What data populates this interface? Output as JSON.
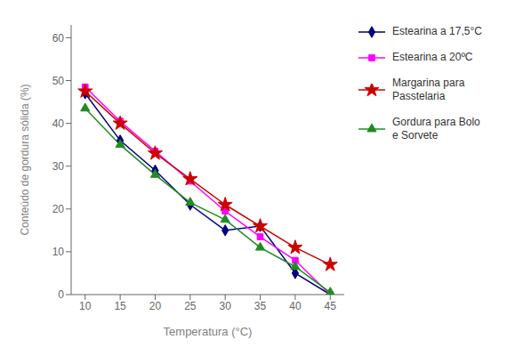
{
  "chart_data": {
    "type": "line",
    "x": [
      10,
      15,
      20,
      25,
      30,
      35,
      40,
      45
    ],
    "series": [
      {
        "name": "Estearina a 17,5°C",
        "color": "#000080",
        "marker": "diamond",
        "values": [
          47,
          36,
          29,
          21,
          15,
          16,
          5,
          0
        ]
      },
      {
        "name": "Estearina a 20ºC",
        "color": "#FF00FF",
        "marker": "square",
        "values": [
          48.5,
          40.5,
          33.5,
          26.5,
          19.5,
          13.5,
          8,
          0
        ]
      },
      {
        "name": "Margarina para\nPasstelaria",
        "color": "#CC0000",
        "marker": "star",
        "values": [
          47.5,
          40,
          33,
          27,
          21,
          16,
          11,
          7
        ]
      },
      {
        "name": "Gordura para Bolo\ne Sorvete",
        "color": "#228B22",
        "marker": "triangle",
        "values": [
          43.5,
          35,
          28,
          21.5,
          17.5,
          11,
          6.5,
          0.5
        ]
      }
    ],
    "xlabel": "Temperatura (°C)",
    "ylabel": "Conteúdo de gordura sólida (%)",
    "xlim": [
      8,
      47
    ],
    "ylim": [
      0,
      63
    ],
    "xticks": [
      10,
      15,
      20,
      25,
      30,
      35,
      40,
      45
    ],
    "yticks": [
      0,
      10,
      20,
      30,
      40,
      50,
      60
    ],
    "grid": false,
    "legend": "right"
  }
}
